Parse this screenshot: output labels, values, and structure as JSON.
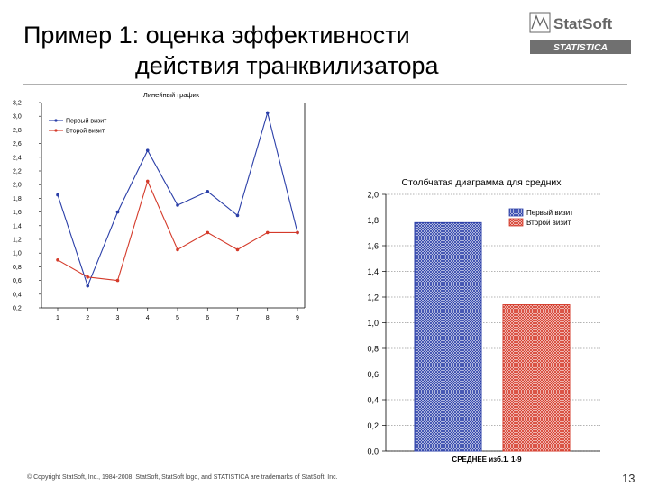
{
  "slide": {
    "title_line1": "Пример 1: оценка эффективности",
    "title_line2": "действия транквилизатора",
    "footer": "© Copyright StatSoft, Inc., 1984-2008. StatSoft, StatSoft logo, and STATISTICA are trademarks of StatSoft, Inc.",
    "page_number": "13",
    "logo_brand": "StatSoft",
    "logo_product": "STATISTICA"
  },
  "chart_data": [
    {
      "type": "line",
      "title": "Линейный график",
      "xlabel": "",
      "ylabel": "",
      "x": [
        1,
        2,
        3,
        4,
        5,
        6,
        7,
        8,
        9
      ],
      "x_ticks": [
        "1",
        "2",
        "3",
        "4",
        "5",
        "6",
        "7",
        "8",
        "9"
      ],
      "ylim": [
        0.2,
        3.2
      ],
      "y_ticks": [
        "0,2",
        "0,4",
        "0,6",
        "0,8",
        "1,0",
        "1,2",
        "1,4",
        "1,6",
        "1,8",
        "2,0",
        "2,2",
        "2,4",
        "2,6",
        "2,8",
        "3,0",
        "3,2"
      ],
      "legend_position": "top-left",
      "series": [
        {
          "name": "Первый визит",
          "color": "#2b3fa8",
          "values": [
            1.85,
            0.52,
            1.6,
            2.5,
            1.7,
            1.9,
            1.55,
            3.05,
            1.3
          ]
        },
        {
          "name": "Второй визит",
          "color": "#d43a2a",
          "values": [
            0.9,
            0.65,
            0.6,
            2.05,
            1.05,
            1.3,
            1.05,
            1.3,
            1.3
          ]
        }
      ]
    },
    {
      "type": "bar",
      "title": "Столбчатая диаграмма для средних",
      "xlabel": "СРЕДНЕЕ изб.1. 1-9",
      "ylabel": "",
      "ylim": [
        0.0,
        2.0
      ],
      "y_ticks": [
        "0,0",
        "0,2",
        "0,4",
        "0,6",
        "0,8",
        "1,0",
        "1,2",
        "1,4",
        "1,6",
        "1,8",
        "2,0"
      ],
      "legend_position": "top-right",
      "series": [
        {
          "name": "Первый визит",
          "color": "#2b3fa8",
          "values": [
            1.78
          ]
        },
        {
          "name": "Второй визит",
          "color": "#d43a2a",
          "values": [
            1.14
          ]
        }
      ]
    }
  ]
}
